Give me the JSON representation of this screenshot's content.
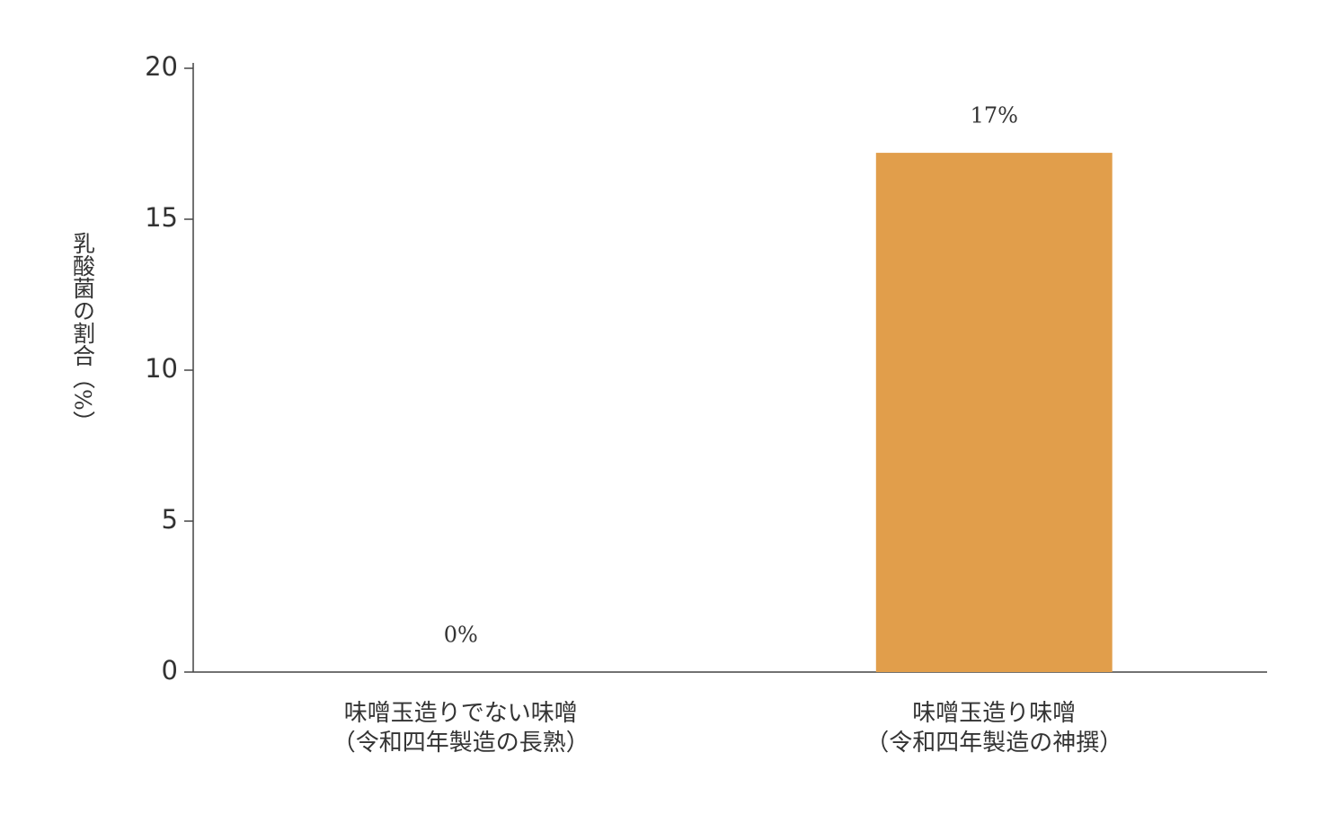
{
  "chart_data": {
    "type": "bar",
    "y_label": "乳酸菌の割合（%）",
    "categories": [
      [
        "味噌玉造りでない味噌",
        "（令和四年製造の長熟）"
      ],
      [
        "味噌玉造り味噌",
        "（令和四年製造の神撰）"
      ]
    ],
    "values": [
      0,
      17.2
    ],
    "value_labels": [
      "0%",
      "17%"
    ],
    "color": "#e19e4b",
    "ylim": [
      0,
      20
    ],
    "yticks": [
      0,
      5,
      10,
      15,
      20
    ]
  }
}
